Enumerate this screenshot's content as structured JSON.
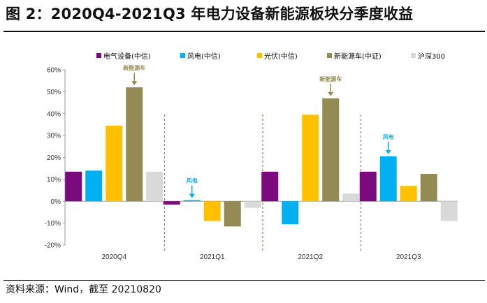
{
  "header": {
    "title": "图 2：2020Q4-2021Q3 年电力设备新能源板块分季度收益"
  },
  "footer": {
    "source": "资料来源：Wind，截至 20210820"
  },
  "chart_data": {
    "type": "bar",
    "categories": [
      "2020Q4",
      "2021Q1",
      "2021Q2",
      "2021Q3"
    ],
    "series": [
      {
        "name": "电气设备(中信)",
        "color": "#7b0a7e",
        "values": [
          13.5,
          -1.5,
          13.5,
          13.5
        ]
      },
      {
        "name": "风电(中信)",
        "color": "#00b0f0",
        "values": [
          14.0,
          0.5,
          -10.5,
          20.5
        ]
      },
      {
        "name": "光伏(中信)",
        "color": "#ffc000",
        "values": [
          34.5,
          -9.0,
          39.5,
          7.0
        ]
      },
      {
        "name": "新能源车(中证)",
        "color": "#948a54",
        "values": [
          52.0,
          -11.5,
          47.0,
          12.5
        ]
      },
      {
        "name": "沪深300",
        "color": "#d9d9d9",
        "values": [
          13.5,
          -3.0,
          3.5,
          -9.0
        ]
      }
    ],
    "ylim": [
      -20,
      60
    ],
    "yticks": [
      -20,
      -10,
      0,
      10,
      20,
      30,
      40,
      50,
      60
    ],
    "ytick_labels": [
      "-20%",
      "-10%",
      "0%",
      "10%",
      "20%",
      "30%",
      "40%",
      "50%",
      "60%"
    ],
    "legend_position": "top",
    "grid": false,
    "annotations": [
      {
        "text": "新能源车",
        "category": "2020Q4",
        "series_index": 3,
        "color": "#948a54"
      },
      {
        "text": "风电",
        "category": "2021Q1",
        "series_index": 1,
        "color": "#00b0f0"
      },
      {
        "text": "新能源车",
        "category": "2021Q2",
        "series_index": 3,
        "color": "#948a54"
      },
      {
        "text": "风电",
        "category": "2021Q3",
        "series_index": 1,
        "color": "#00b0f0"
      }
    ]
  }
}
